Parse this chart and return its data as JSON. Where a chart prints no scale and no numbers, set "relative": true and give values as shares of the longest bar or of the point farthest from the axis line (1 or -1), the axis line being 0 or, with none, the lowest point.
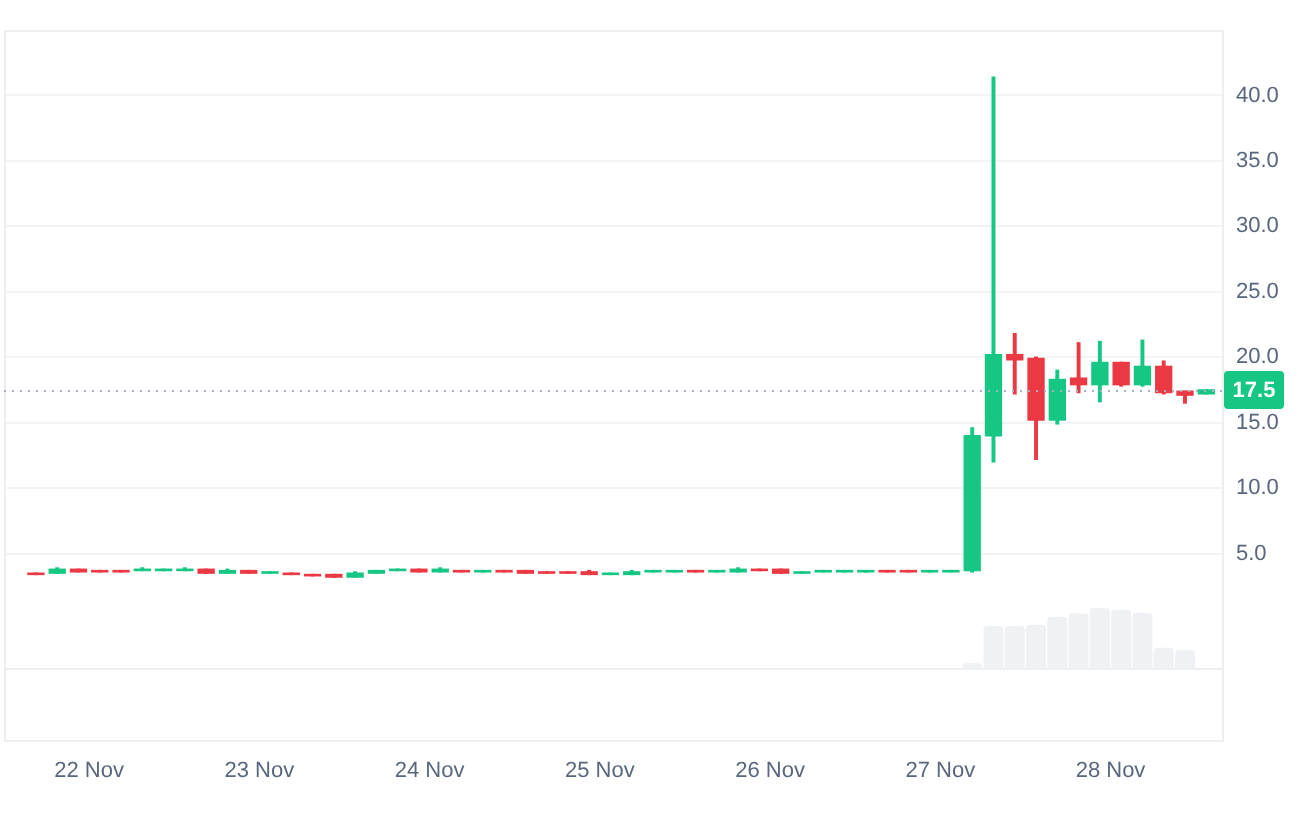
{
  "chart_data": [
    {
      "type": "candlestick",
      "x": [
        "--11-21T16:30",
        "--11-21T19:30",
        "--11-21T22:30",
        "--11-22T01:30",
        "--11-22T04:30",
        "--11-22T07:30",
        "--11-22T10:30",
        "--11-22T13:30",
        "--11-22T16:30",
        "--11-22T19:30",
        "--11-22T22:30",
        "--11-23T01:30",
        "--11-23T04:30",
        "--11-23T07:30",
        "--11-23T10:30",
        "--11-23T13:30",
        "--11-23T16:30",
        "--11-23T19:30",
        "--11-23T22:30",
        "--11-24T01:30",
        "--11-24T04:30",
        "--11-24T07:30",
        "--11-24T10:30",
        "--11-24T13:30",
        "--11-24T16:30",
        "--11-24T19:30",
        "--11-24T22:30",
        "--11-25T01:30",
        "--11-25T04:30",
        "--11-25T07:30",
        "--11-25T10:30",
        "--11-25T13:30",
        "--11-25T16:30",
        "--11-25T19:30",
        "--11-25T22:30",
        "--11-26T01:30",
        "--11-26T04:30",
        "--11-26T07:30",
        "--11-26T10:30",
        "--11-26T13:30",
        "--11-26T16:30",
        "--11-26T19:30",
        "--11-26T22:30",
        "--11-27T01:30",
        "--11-27T04:30",
        "--11-27T07:30",
        "--11-27T10:30",
        "--11-27T13:30",
        "--11-27T16:30",
        "--11-27T19:30",
        "--11-27T22:30",
        "--11-28T01:30",
        "--11-28T04:30",
        "--11-28T07:30",
        "--11-28T10:30",
        "--11-28T13:30"
      ],
      "ohlc": [
        [
          3.5,
          3.5,
          3.4,
          3.4
        ],
        [
          3.5,
          3.9,
          3.5,
          3.8
        ],
        [
          3.8,
          3.8,
          3.6,
          3.6
        ],
        [
          3.7,
          3.7,
          3.6,
          3.6
        ],
        [
          3.7,
          3.7,
          3.6,
          3.6
        ],
        [
          3.7,
          3.9,
          3.7,
          3.8
        ],
        [
          3.7,
          3.8,
          3.7,
          3.8
        ],
        [
          3.7,
          3.9,
          3.7,
          3.8
        ],
        [
          3.8,
          3.8,
          3.5,
          3.5
        ],
        [
          3.5,
          3.8,
          3.5,
          3.7
        ],
        [
          3.7,
          3.7,
          3.5,
          3.5
        ],
        [
          3.5,
          3.6,
          3.5,
          3.6
        ],
        [
          3.5,
          3.5,
          3.4,
          3.4
        ],
        [
          3.4,
          3.4,
          3.3,
          3.3
        ],
        [
          3.4,
          3.4,
          3.2,
          3.2
        ],
        [
          3.2,
          3.6,
          3.2,
          3.5
        ],
        [
          3.5,
          3.7,
          3.5,
          3.7
        ],
        [
          3.7,
          3.8,
          3.7,
          3.8
        ],
        [
          3.8,
          3.8,
          3.6,
          3.6
        ],
        [
          3.6,
          3.9,
          3.6,
          3.8
        ],
        [
          3.7,
          3.7,
          3.6,
          3.6
        ],
        [
          3.6,
          3.7,
          3.6,
          3.7
        ],
        [
          3.7,
          3.7,
          3.6,
          3.6
        ],
        [
          3.7,
          3.7,
          3.5,
          3.5
        ],
        [
          3.6,
          3.6,
          3.5,
          3.5
        ],
        [
          3.6,
          3.6,
          3.5,
          3.5
        ],
        [
          3.6,
          3.7,
          3.4,
          3.4
        ],
        [
          3.4,
          3.5,
          3.4,
          3.5
        ],
        [
          3.4,
          3.7,
          3.4,
          3.6
        ],
        [
          3.6,
          3.7,
          3.6,
          3.7
        ],
        [
          3.6,
          3.7,
          3.6,
          3.7
        ],
        [
          3.7,
          3.7,
          3.6,
          3.6
        ],
        [
          3.6,
          3.7,
          3.6,
          3.7
        ],
        [
          3.6,
          3.9,
          3.6,
          3.8
        ],
        [
          3.8,
          3.8,
          3.7,
          3.7
        ],
        [
          3.8,
          3.8,
          3.5,
          3.5
        ],
        [
          3.5,
          3.6,
          3.5,
          3.6
        ],
        [
          3.6,
          3.7,
          3.6,
          3.7
        ],
        [
          3.6,
          3.7,
          3.6,
          3.7
        ],
        [
          3.6,
          3.7,
          3.6,
          3.7
        ],
        [
          3.7,
          3.7,
          3.6,
          3.6
        ],
        [
          3.7,
          3.7,
          3.6,
          3.6
        ],
        [
          3.6,
          3.7,
          3.6,
          3.7
        ],
        [
          3.6,
          3.7,
          3.6,
          3.7
        ],
        [
          3.7,
          14.6,
          3.6,
          14.0
        ],
        [
          14.0,
          41.4,
          12.0,
          20.2
        ],
        [
          20.2,
          21.8,
          17.2,
          19.8
        ],
        [
          19.9,
          20.0,
          12.2,
          15.2
        ],
        [
          15.2,
          19.0,
          14.9,
          18.3
        ],
        [
          18.4,
          21.1,
          17.3,
          17.9
        ],
        [
          17.9,
          21.2,
          16.6,
          19.6
        ],
        [
          19.6,
          19.6,
          17.8,
          17.9
        ],
        [
          17.9,
          21.3,
          17.8,
          19.3
        ],
        [
          19.3,
          19.7,
          17.2,
          17.3
        ],
        [
          17.4,
          17.4,
          16.5,
          17.1
        ],
        [
          17.2,
          17.5,
          17.2,
          17.5
        ]
      ],
      "colors": [
        "#ea3943",
        "#16c784",
        "#ea3943",
        "#ea3943",
        "#ea3943",
        "#16c784",
        "#16c784",
        "#16c784",
        "#ea3943",
        "#16c784",
        "#ea3943",
        "#16c784",
        "#ea3943",
        "#ea3943",
        "#ea3943",
        "#16c784",
        "#16c784",
        "#16c784",
        "#ea3943",
        "#16c784",
        "#ea3943",
        "#16c784",
        "#ea3943",
        "#ea3943",
        "#ea3943",
        "#ea3943",
        "#ea3943",
        "#16c784",
        "#16c784",
        "#16c784",
        "#16c784",
        "#ea3943",
        "#16c784",
        "#16c784",
        "#ea3943",
        "#ea3943",
        "#16c784",
        "#16c784",
        "#16c784",
        "#16c784",
        "#ea3943",
        "#ea3943",
        "#16c784",
        "#16c784",
        "#16c784",
        "#16c784",
        "#ea3943",
        "#ea3943",
        "#16c784",
        "#ea3943",
        "#16c784",
        "#ea3943",
        "#16c784",
        "#ea3943",
        "#ea3943",
        "#16c784"
      ],
      "xlim": [
        "--11-21T12:00",
        "--11-28T16:00"
      ],
      "xticks": [
        {
          "value": "--11-22",
          "label": "22 Nov"
        },
        {
          "value": "--11-23",
          "label": "23 Nov"
        },
        {
          "value": "--11-24",
          "label": "24 Nov"
        },
        {
          "value": "--11-25",
          "label": "25 Nov"
        },
        {
          "value": "--11-26",
          "label": "26 Nov"
        },
        {
          "value": "--11-27",
          "label": "27 Nov"
        },
        {
          "value": "--11-28",
          "label": "28 Nov"
        }
      ],
      "ylim": [
        -9.4,
        45
      ],
      "yticks": [
        {
          "value": 5,
          "label": "5.0"
        },
        {
          "value": 10,
          "label": "10.0"
        },
        {
          "value": 15,
          "label": "15.0"
        },
        {
          "value": 20,
          "label": "20.0"
        },
        {
          "value": 25,
          "label": "25.0"
        },
        {
          "value": 30,
          "label": "30.0"
        },
        {
          "value": 35,
          "label": "35.0"
        },
        {
          "value": 40,
          "label": "40.0"
        }
      ],
      "grid": "y",
      "ref_lines": [
        {
          "axis": "y",
          "value": 17.5,
          "label": "17.5",
          "color": "#a6b0c3",
          "line_style": "dotted"
        }
      ]
    },
    {
      "type": "bar",
      "relative": true,
      "x": [
        "--11-27T04:30",
        "--11-27T07:30",
        "--11-27T10:30",
        "--11-27T13:30",
        "--11-27T16:30",
        "--11-27T19:30",
        "--11-27T22:30",
        "--11-28T01:30",
        "--11-28T04:30",
        "--11-28T07:30",
        "--11-28T10:30"
      ],
      "values": [
        0.11,
        0.71,
        0.71,
        0.73,
        0.86,
        0.91,
        1,
        0.97,
        0.92,
        0.36,
        0.32
      ],
      "color": "#eff1f4",
      "xlim": [
        "--11-21T12:00",
        "--11-28T16:00"
      ],
      "tick_labels": false
    }
  ]
}
